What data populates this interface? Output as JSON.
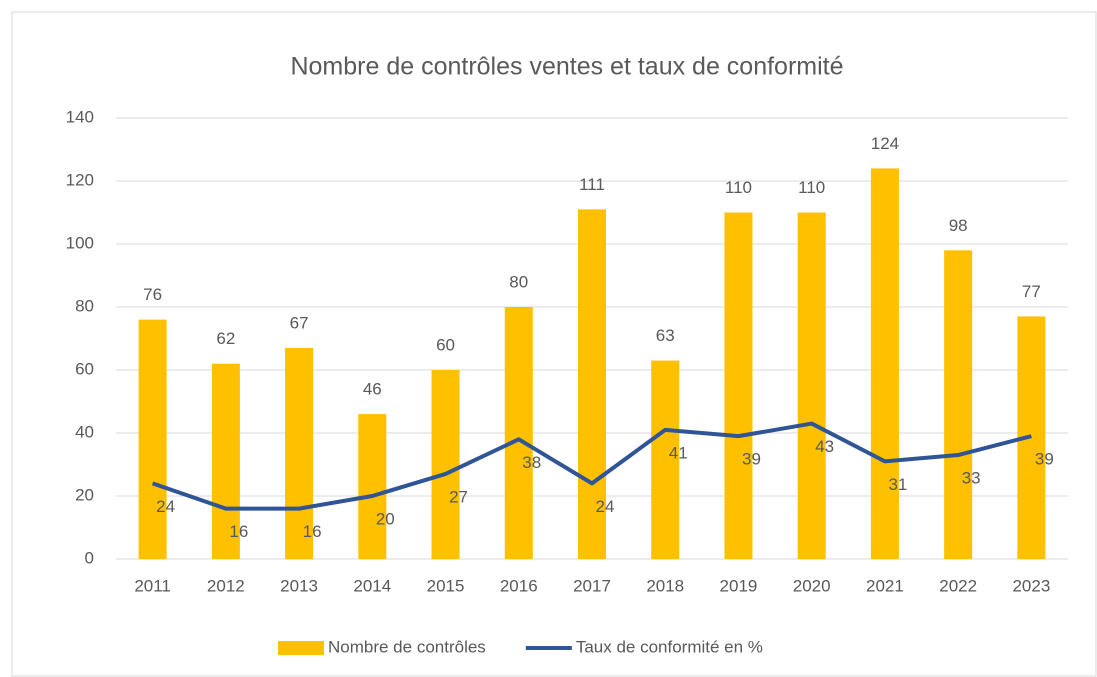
{
  "chart_data": {
    "type": "bar",
    "title": "Nombre de contrôles ventes et taux de conformité",
    "categories": [
      "2011",
      "2012",
      "2013",
      "2014",
      "2015",
      "2016",
      "2017",
      "2018",
      "2019",
      "2020",
      "2021",
      "2022",
      "2023"
    ],
    "series": [
      {
        "name": "Nombre de contrôles",
        "type": "bar",
        "color": "#ffc000",
        "values": [
          76,
          62,
          67,
          46,
          60,
          80,
          111,
          63,
          110,
          110,
          124,
          98,
          77
        ]
      },
      {
        "name": "Taux de conformité en %",
        "type": "line",
        "color": "#2f5597",
        "values": [
          24,
          16,
          16,
          20,
          27,
          38,
          24,
          41,
          39,
          43,
          31,
          33,
          39
        ]
      }
    ],
    "ylim": [
      0,
      140
    ],
    "yticks": [
      0,
      20,
      40,
      60,
      80,
      100,
      120,
      140
    ],
    "grid": true,
    "legend": "bottom"
  }
}
